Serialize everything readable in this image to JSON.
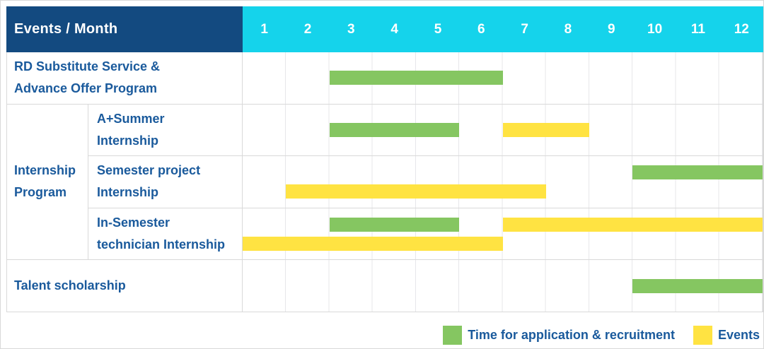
{
  "header": {
    "title": "Events / Month",
    "months": [
      "1",
      "2",
      "3",
      "4",
      "5",
      "6",
      "7",
      "8",
      "9",
      "10",
      "11",
      "12"
    ]
  },
  "colors": {
    "header_navy": "#134a80",
    "header_cyan": "#15d3eb",
    "bar_green": "#85c661",
    "bar_yellow": "#ffe342",
    "label_blue": "#1a5a9c"
  },
  "rows": [
    {
      "group": "",
      "label": "RD Substitute Service &\nAdvance Offer Program",
      "lines": [
        [
          {
            "color": "green",
            "start": 3,
            "end": 6
          }
        ]
      ]
    },
    {
      "group": "Internship Program",
      "label": "A+Summer\nInternship",
      "lines": [
        [
          {
            "color": "green",
            "start": 3,
            "end": 5
          },
          {
            "color": "yellow",
            "start": 7,
            "end": 8
          }
        ]
      ]
    },
    {
      "group": "Internship Program",
      "label": "Semester project\nInternship",
      "lines": [
        [
          {
            "color": "green",
            "start": 10,
            "end": 12
          }
        ],
        [
          {
            "color": "yellow",
            "start": 2,
            "end": 7
          }
        ]
      ]
    },
    {
      "group": "Internship Program",
      "label": "In-Semester\ntechnician Internship",
      "lines": [
        [
          {
            "color": "green",
            "start": 3,
            "end": 5
          },
          {
            "color": "yellow",
            "start": 7,
            "end": 12
          }
        ],
        [
          {
            "color": "yellow",
            "start": 1,
            "end": 6
          }
        ]
      ]
    },
    {
      "group": "",
      "label": "Talent scholarship",
      "lines": [
        [
          {
            "color": "green",
            "start": 10,
            "end": 12
          }
        ]
      ]
    }
  ],
  "legend": [
    {
      "color": "green",
      "label": "Time for application & recruitment"
    },
    {
      "color": "yellow",
      "label": "Events"
    }
  ],
  "chart_data": {
    "type": "bar",
    "subtype": "gantt-timeline",
    "title": "Events / Month",
    "x": {
      "label": "Month",
      "ticks": [
        1,
        2,
        3,
        4,
        5,
        6,
        7,
        8,
        9,
        10,
        11,
        12
      ],
      "range": [
        1,
        12
      ]
    },
    "legend_position": "bottom-right",
    "grid": true,
    "series_legend": [
      {
        "name": "Time for application & recruitment",
        "color": "#85c661"
      },
      {
        "name": "Events",
        "color": "#ffe342"
      }
    ],
    "tasks": [
      {
        "group": "",
        "name": "RD Substitute Service & Advance Offer Program",
        "bars": [
          {
            "series": "Time for application & recruitment",
            "start_month": 3,
            "end_month": 6
          }
        ]
      },
      {
        "group": "Internship Program",
        "name": "A+Summer Internship",
        "bars": [
          {
            "series": "Time for application & recruitment",
            "start_month": 3,
            "end_month": 5
          },
          {
            "series": "Events",
            "start_month": 7,
            "end_month": 8
          }
        ]
      },
      {
        "group": "Internship Program",
        "name": "Semester project Internship",
        "bars": [
          {
            "series": "Time for application & recruitment",
            "start_month": 10,
            "end_month": 12
          },
          {
            "series": "Events",
            "start_month": 2,
            "end_month": 7
          }
        ]
      },
      {
        "group": "Internship Program",
        "name": "In-Semester technician Internship",
        "bars": [
          {
            "series": "Time for application & recruitment",
            "start_month": 3,
            "end_month": 5
          },
          {
            "series": "Events",
            "start_month": 7,
            "end_month": 12
          },
          {
            "series": "Events",
            "start_month": 1,
            "end_month": 6
          }
        ]
      },
      {
        "group": "",
        "name": "Talent scholarship",
        "bars": [
          {
            "series": "Time for application & recruitment",
            "start_month": 10,
            "end_month": 12
          }
        ]
      }
    ]
  }
}
